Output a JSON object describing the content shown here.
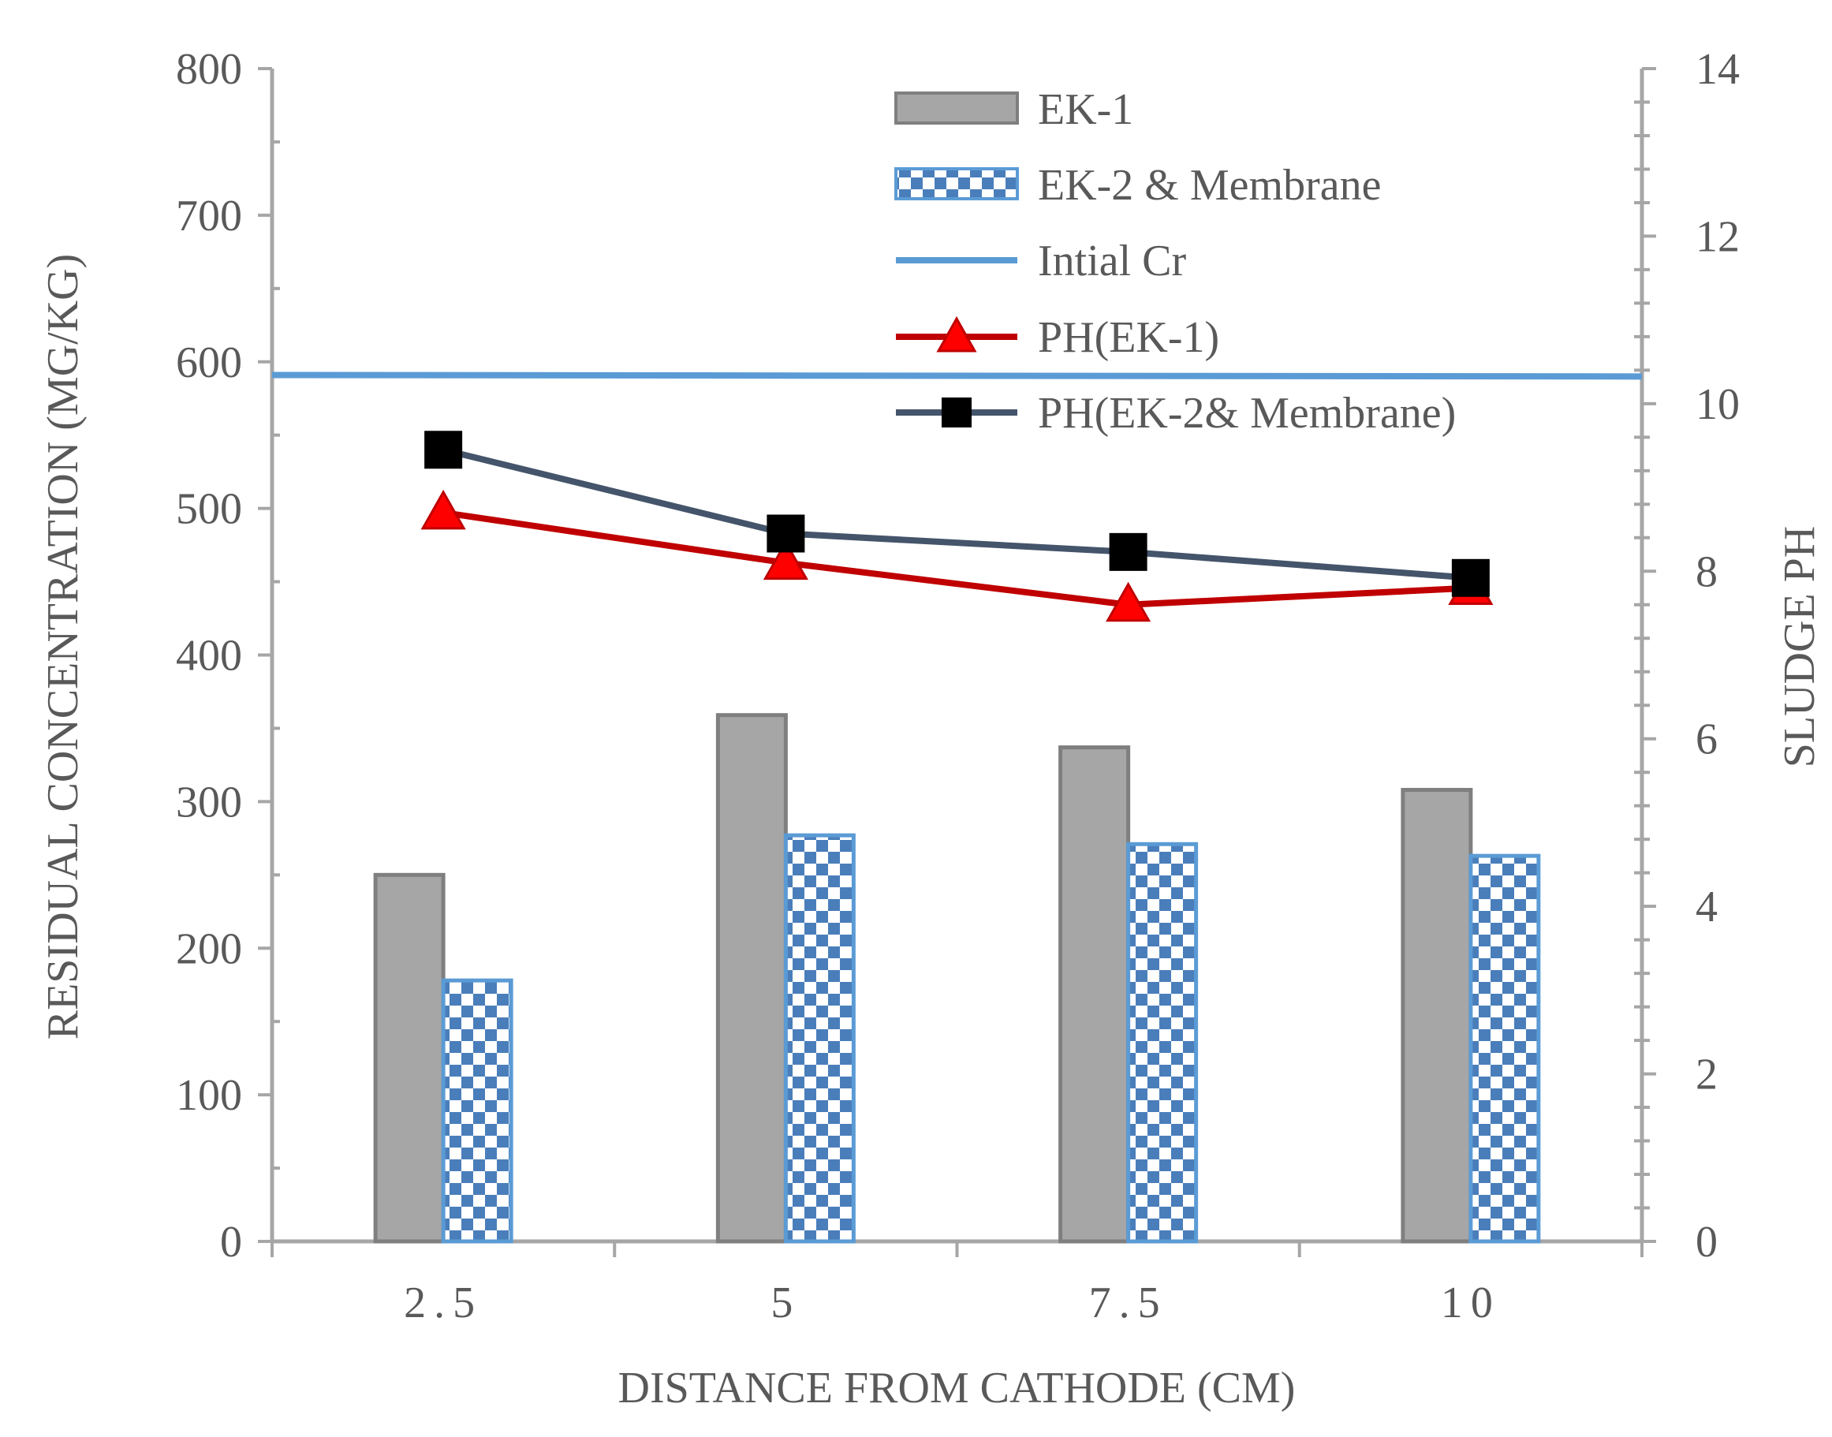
{
  "chart_data": {
    "type": "bar",
    "title": "",
    "xlabel": "DISTANCE FROM CATHODE (CM)",
    "ylabel": "RESIDUAL CONCENTRATION (MG/KG)",
    "y2label": "SLUDGE PH",
    "categories": [
      "2.5",
      "5",
      "7.5",
      "10"
    ],
    "ylim": [
      0,
      800
    ],
    "yticks": [
      "0",
      "100",
      "200",
      "300",
      "400",
      "500",
      "600",
      "700",
      "800"
    ],
    "y2lim": [
      0,
      14
    ],
    "y2ticks": [
      "0",
      "2",
      "4",
      "6",
      "8",
      "10",
      "12",
      "14"
    ],
    "grid": false,
    "legend_position": "top-right",
    "bar_series": [
      {
        "name": "EK-1",
        "values": [
          250,
          359,
          337,
          308
        ],
        "color": "#a6a6a6",
        "stroke": "#7f7f7f",
        "pattern": "solid"
      },
      {
        "name": "EK-2 & Membrane",
        "values": [
          178,
          277,
          271,
          263
        ],
        "color": "#4a7ebb",
        "stroke": "#5b9bd5",
        "pattern": "checker"
      }
    ],
    "reference_lines": [
      {
        "name": "Intial Cr",
        "value": 591,
        "value_end": 590,
        "color": "#5b9bd5"
      }
    ],
    "line_series": [
      {
        "name": "PH(EK-1)",
        "axis": "y2",
        "values": [
          8.7,
          8.1,
          7.6,
          7.8
        ],
        "color": "#c00000",
        "marker": "triangle",
        "marker_color": "#ff0000"
      },
      {
        "name": "PH(EK-2& Membrane)",
        "axis": "y2",
        "values": [
          9.45,
          8.45,
          8.23,
          7.92
        ],
        "color": "#44546a",
        "marker": "square",
        "marker_color": "#000000"
      }
    ]
  }
}
